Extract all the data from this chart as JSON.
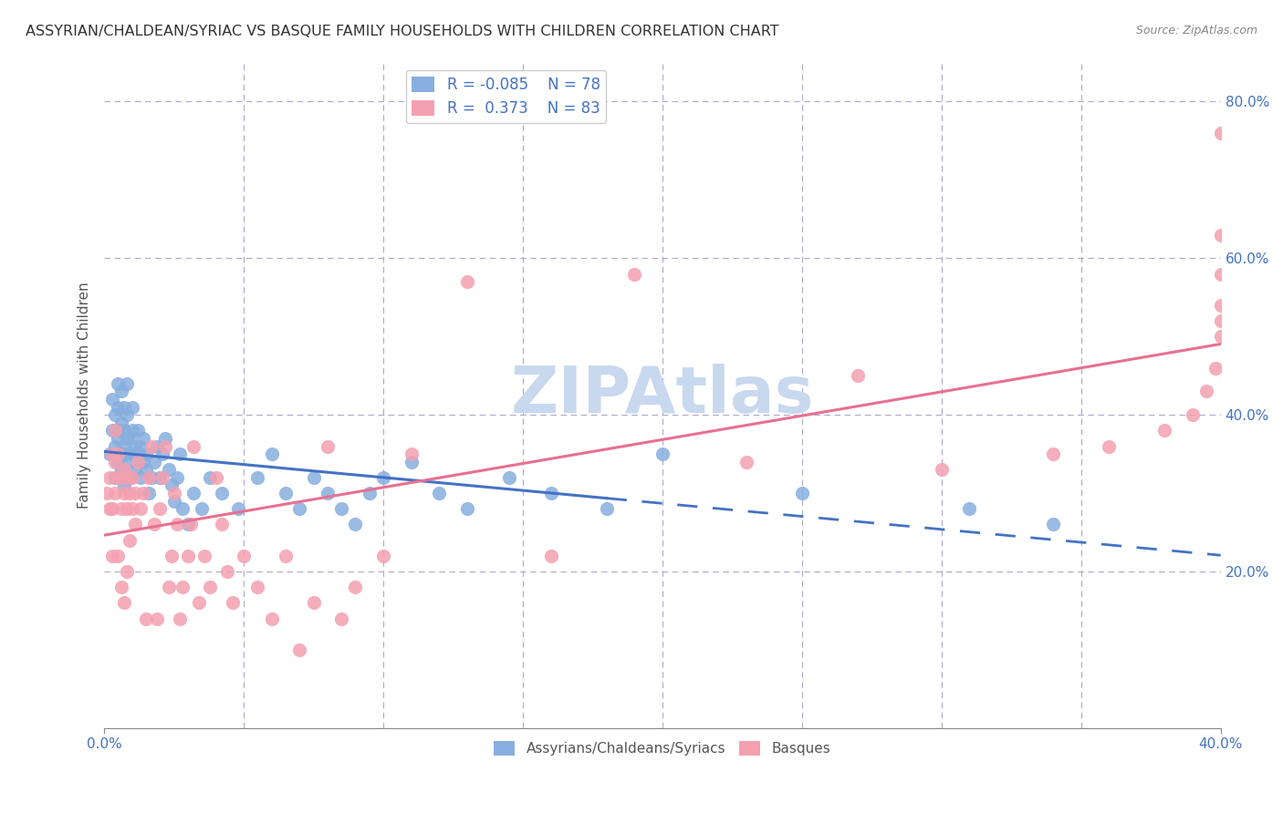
{
  "title": "ASSYRIAN/CHALDEAN/SYRIAC VS BASQUE FAMILY HOUSEHOLDS WITH CHILDREN CORRELATION CHART",
  "source": "Source: ZipAtlas.com",
  "ylabel": "Family Households with Children",
  "xmin": 0.0,
  "xmax": 0.4,
  "ymin": 0.0,
  "ymax": 0.85,
  "legend_r_blue": "-0.085",
  "legend_n_blue": "78",
  "legend_r_pink": "0.373",
  "legend_n_pink": "83",
  "blue_color": "#87AEDE",
  "pink_color": "#F4A0B0",
  "blue_line_color": "#4472C4",
  "pink_line_color": "#E87090",
  "watermark": "ZIPAtlas",
  "watermark_color": "#C8D8EE",
  "blue_scatter_x": [
    0.002,
    0.003,
    0.003,
    0.004,
    0.004,
    0.004,
    0.005,
    0.005,
    0.005,
    0.005,
    0.005,
    0.006,
    0.006,
    0.006,
    0.006,
    0.007,
    0.007,
    0.007,
    0.007,
    0.008,
    0.008,
    0.008,
    0.008,
    0.009,
    0.009,
    0.009,
    0.01,
    0.01,
    0.01,
    0.011,
    0.011,
    0.012,
    0.012,
    0.013,
    0.013,
    0.014,
    0.014,
    0.015,
    0.015,
    0.016,
    0.017,
    0.018,
    0.019,
    0.02,
    0.021,
    0.022,
    0.023,
    0.024,
    0.025,
    0.026,
    0.027,
    0.028,
    0.03,
    0.032,
    0.035,
    0.038,
    0.042,
    0.048,
    0.055,
    0.06,
    0.065,
    0.07,
    0.075,
    0.08,
    0.085,
    0.09,
    0.095,
    0.1,
    0.11,
    0.12,
    0.13,
    0.145,
    0.16,
    0.18,
    0.2,
    0.25,
    0.31,
    0.34
  ],
  "blue_scatter_y": [
    0.35,
    0.38,
    0.42,
    0.4,
    0.36,
    0.32,
    0.34,
    0.38,
    0.41,
    0.44,
    0.37,
    0.33,
    0.35,
    0.39,
    0.43,
    0.36,
    0.38,
    0.41,
    0.31,
    0.35,
    0.37,
    0.4,
    0.44,
    0.32,
    0.34,
    0.37,
    0.35,
    0.38,
    0.41,
    0.33,
    0.36,
    0.35,
    0.38,
    0.32,
    0.36,
    0.34,
    0.37,
    0.33,
    0.35,
    0.3,
    0.32,
    0.34,
    0.36,
    0.32,
    0.35,
    0.37,
    0.33,
    0.31,
    0.29,
    0.32,
    0.35,
    0.28,
    0.26,
    0.3,
    0.28,
    0.32,
    0.3,
    0.28,
    0.32,
    0.35,
    0.3,
    0.28,
    0.32,
    0.3,
    0.28,
    0.26,
    0.3,
    0.32,
    0.34,
    0.3,
    0.28,
    0.32,
    0.3,
    0.28,
    0.35,
    0.3,
    0.28,
    0.26
  ],
  "pink_scatter_x": [
    0.001,
    0.002,
    0.002,
    0.003,
    0.003,
    0.003,
    0.004,
    0.004,
    0.004,
    0.005,
    0.005,
    0.005,
    0.006,
    0.006,
    0.006,
    0.007,
    0.007,
    0.007,
    0.008,
    0.008,
    0.008,
    0.009,
    0.009,
    0.01,
    0.01,
    0.011,
    0.011,
    0.012,
    0.013,
    0.014,
    0.015,
    0.016,
    0.017,
    0.018,
    0.019,
    0.02,
    0.021,
    0.022,
    0.023,
    0.024,
    0.025,
    0.026,
    0.027,
    0.028,
    0.03,
    0.031,
    0.032,
    0.034,
    0.036,
    0.038,
    0.04,
    0.042,
    0.044,
    0.046,
    0.05,
    0.055,
    0.06,
    0.065,
    0.07,
    0.075,
    0.08,
    0.085,
    0.09,
    0.1,
    0.11,
    0.13,
    0.16,
    0.19,
    0.23,
    0.27,
    0.3,
    0.34,
    0.36,
    0.38,
    0.39,
    0.395,
    0.398,
    0.4,
    0.4,
    0.4,
    0.4,
    0.4,
    0.4
  ],
  "pink_scatter_y": [
    0.3,
    0.28,
    0.32,
    0.35,
    0.28,
    0.22,
    0.3,
    0.34,
    0.38,
    0.32,
    0.35,
    0.22,
    0.28,
    0.32,
    0.18,
    0.3,
    0.33,
    0.16,
    0.28,
    0.32,
    0.2,
    0.3,
    0.24,
    0.28,
    0.32,
    0.26,
    0.3,
    0.34,
    0.28,
    0.3,
    0.14,
    0.32,
    0.36,
    0.26,
    0.14,
    0.28,
    0.32,
    0.36,
    0.18,
    0.22,
    0.3,
    0.26,
    0.14,
    0.18,
    0.22,
    0.26,
    0.36,
    0.16,
    0.22,
    0.18,
    0.32,
    0.26,
    0.2,
    0.16,
    0.22,
    0.18,
    0.14,
    0.22,
    0.1,
    0.16,
    0.36,
    0.14,
    0.18,
    0.22,
    0.35,
    0.57,
    0.22,
    0.58,
    0.34,
    0.45,
    0.33,
    0.35,
    0.36,
    0.38,
    0.4,
    0.43,
    0.46,
    0.5,
    0.54,
    0.58,
    0.76,
    0.63,
    0.52
  ]
}
